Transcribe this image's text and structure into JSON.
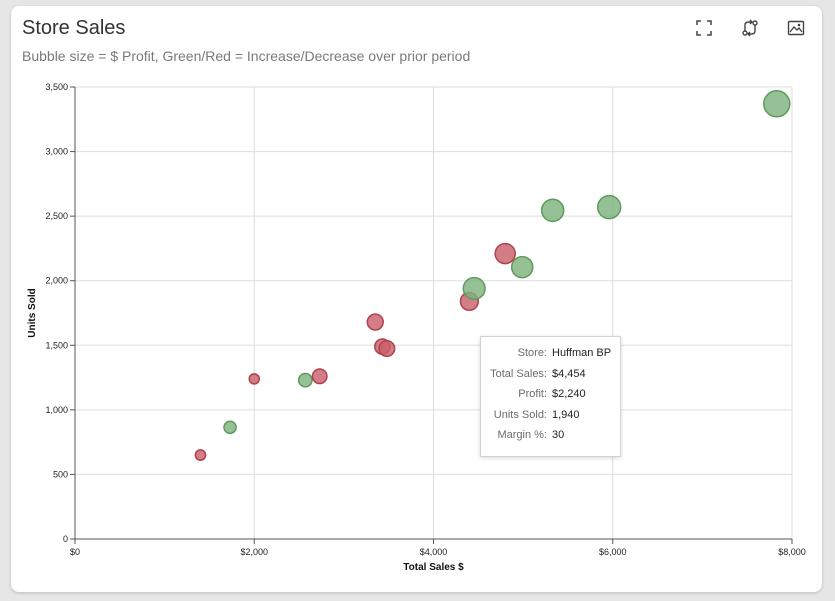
{
  "header": {
    "title": "Store Sales",
    "subtitle": "Bubble size = $ Profit, Green/Red = Increase/Decrease over prior period"
  },
  "toolbar": {
    "icons": [
      "fullscreen-icon",
      "transform-icon",
      "image-export-icon"
    ]
  },
  "colors": {
    "increase": "#7fb37f",
    "decrease": "#c9606d",
    "grid": "#dddddd"
  },
  "chart_data": {
    "type": "scatter",
    "xlabel": "Total Sales $",
    "ylabel": "Units Sold",
    "xlim": [
      0,
      8000
    ],
    "ylim": [
      0,
      3500
    ],
    "x_ticks": [
      0,
      2000,
      4000,
      6000,
      8000
    ],
    "x_tick_labels": [
      "$0",
      "$2,000",
      "$4,000",
      "$6,000",
      "$8,000"
    ],
    "y_ticks": [
      0,
      500,
      1000,
      1500,
      2000,
      2500,
      3000,
      3500
    ],
    "y_tick_labels": [
      "0",
      "500",
      "1,000",
      "1,500",
      "2,000",
      "2,500",
      "3,000",
      "3,500"
    ],
    "grid": true,
    "size_encoding": "Profit",
    "color_encoding": "increase/decrease",
    "points": [
      {
        "x": 1400,
        "y": 650,
        "profit": 500,
        "trend": "decrease"
      },
      {
        "x": 1730,
        "y": 865,
        "profit": 700,
        "trend": "increase"
      },
      {
        "x": 2000,
        "y": 1240,
        "profit": 480,
        "trend": "decrease"
      },
      {
        "x": 2570,
        "y": 1230,
        "profit": 850,
        "trend": "increase"
      },
      {
        "x": 2730,
        "y": 1260,
        "profit": 1000,
        "trend": "decrease"
      },
      {
        "x": 3350,
        "y": 1680,
        "profit": 1200,
        "trend": "decrease"
      },
      {
        "x": 3430,
        "y": 1490,
        "profit": 1100,
        "trend": "decrease"
      },
      {
        "x": 3480,
        "y": 1475,
        "profit": 1150,
        "trend": "decrease"
      },
      {
        "x": 4400,
        "y": 1840,
        "profit": 1500,
        "trend": "decrease"
      },
      {
        "x": 4454,
        "y": 1940,
        "profit": 2240,
        "trend": "increase"
      },
      {
        "x": 4800,
        "y": 2210,
        "profit": 1900,
        "trend": "decrease"
      },
      {
        "x": 4990,
        "y": 2105,
        "profit": 2100,
        "trend": "increase"
      },
      {
        "x": 5330,
        "y": 2545,
        "profit": 2300,
        "trend": "increase"
      },
      {
        "x": 5960,
        "y": 2570,
        "profit": 2500,
        "trend": "increase"
      },
      {
        "x": 7830,
        "y": 3370,
        "profit": 3200,
        "trend": "increase"
      }
    ]
  },
  "tooltip": {
    "rows": [
      {
        "key": "Store:",
        "value": "Huffman BP"
      },
      {
        "key": "Total Sales:",
        "value": "$4,454"
      },
      {
        "key": "Profit:",
        "value": "$2,240"
      },
      {
        "key": "Units Sold:",
        "value": "1,940"
      },
      {
        "key": "Margin %:",
        "value": "30"
      }
    ]
  }
}
